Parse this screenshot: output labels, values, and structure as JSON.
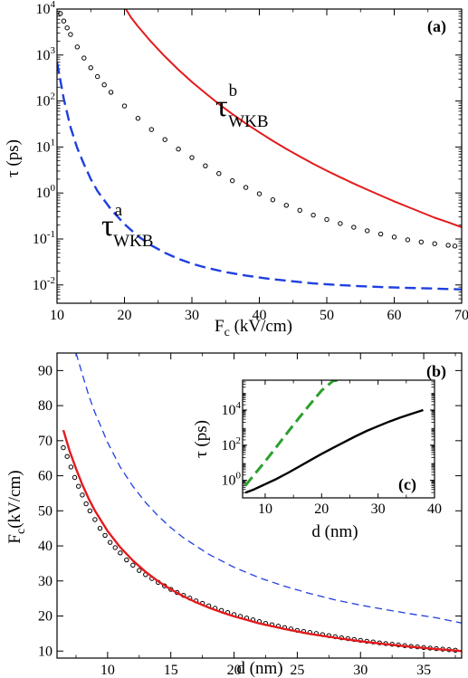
{
  "chart_data": [
    {
      "type": "scatter",
      "panel_label": "(a)",
      "xlabel": "F",
      "xlabel_sub": "c",
      "xlabel_unit": " (kV/cm)",
      "ylabel": "τ (ps)",
      "xlim": [
        10,
        70
      ],
      "ylim": [
        0.004,
        10000
      ],
      "yscale": "log",
      "x_ticks": [
        10,
        20,
        30,
        40,
        50,
        60,
        70
      ],
      "x_tick_labels": [
        "10",
        "20",
        "30",
        "40",
        "50",
        "60",
        "70"
      ],
      "y_ticks": [
        0.01,
        0.1,
        1,
        10,
        100,
        1000,
        10000
      ],
      "y_tick_bases": [
        "10",
        "10",
        "10",
        "10",
        "10",
        "10",
        "10"
      ],
      "y_tick_exps": [
        "-2",
        "-1",
        "0",
        "1",
        "2",
        "3",
        "4"
      ],
      "series": [
        {
          "style": "points",
          "color": "#000000",
          "x": [
            10.5,
            11,
            11.5,
            12,
            13,
            14,
            15,
            16,
            17,
            18,
            20,
            22,
            24,
            26,
            28,
            30,
            32,
            34,
            36,
            38,
            40,
            42,
            44,
            46,
            48,
            50,
            52,
            54,
            56,
            58,
            60,
            62,
            64,
            66,
            68,
            69
          ],
          "y": [
            8000,
            5500,
            3900,
            2800,
            1500,
            860,
            530,
            340,
            225,
            155,
            78,
            42,
            24,
            14.5,
            9,
            5.9,
            3.9,
            2.65,
            1.85,
            1.32,
            0.96,
            0.71,
            0.54,
            0.42,
            0.33,
            0.265,
            0.217,
            0.18,
            0.151,
            0.128,
            0.11,
            0.096,
            0.086,
            0.079,
            0.073,
            0.07
          ]
        },
        {
          "name": "τ",
          "name_sup": "b",
          "name_sub": "WKB",
          "style": "solid",
          "color": "#e41a1c",
          "x": [
            20.2,
            21,
            22,
            24,
            26,
            28,
            30,
            32,
            34,
            36,
            38,
            40,
            42,
            44,
            46,
            48,
            50,
            52,
            54,
            56,
            58,
            60,
            62,
            64,
            66,
            68,
            70
          ],
          "y": [
            10000,
            6500,
            4200,
            1900,
            930,
            480,
            260,
            148,
            86,
            52,
            32.5,
            20.8,
            13.6,
            9.1,
            6.2,
            4.3,
            3.05,
            2.2,
            1.6,
            1.18,
            0.88,
            0.66,
            0.5,
            0.38,
            0.29,
            0.23,
            0.18
          ]
        },
        {
          "name": "τ",
          "name_sup": "a",
          "name_sub": "WKB",
          "style": "dashed",
          "color": "#1f3fe0",
          "x": [
            10,
            11,
            12,
            13,
            14,
            15,
            16,
            18,
            20,
            22,
            24,
            26,
            28,
            30,
            32,
            35,
            38,
            40,
            42,
            45,
            48,
            50,
            55,
            60,
            65,
            70
          ],
          "y": [
            700,
            110,
            27,
            9.5,
            4.2,
            2.0,
            1.1,
            0.44,
            0.21,
            0.115,
            0.072,
            0.05,
            0.037,
            0.029,
            0.024,
            0.019,
            0.016,
            0.0145,
            0.0133,
            0.012,
            0.0108,
            0.0103,
            0.0094,
            0.0088,
            0.0084,
            0.008
          ]
        }
      ]
    },
    {
      "type": "scatter",
      "panel_label": "(b)",
      "xlabel": "d (nm)",
      "ylabel": "F",
      "ylabel_sub": "c",
      "ylabel_unit": "(kV/cm)",
      "xlim": [
        6,
        38
      ],
      "ylim": [
        8,
        95
      ],
      "x_ticks": [
        10,
        15,
        20,
        25,
        30,
        35
      ],
      "x_tick_labels": [
        "10",
        "15",
        "20",
        "25",
        "30",
        "35"
      ],
      "y_ticks": [
        10,
        20,
        30,
        40,
        50,
        60,
        70,
        80,
        90
      ],
      "y_tick_labels": [
        "10",
        "20",
        "30",
        "40",
        "50",
        "60",
        "70",
        "80",
        "90"
      ],
      "series": [
        {
          "style": "points",
          "color": "#000000",
          "x": [
            6.5,
            6.8,
            7.1,
            7.4,
            7.7,
            8.0,
            8.3,
            8.6,
            9.0,
            9.4,
            9.8,
            10.2,
            10.6,
            11.0,
            11.5,
            12.0,
            12.5,
            13.0,
            13.5,
            14.0,
            14.5,
            15.0,
            15.5,
            16.0,
            16.5,
            17.0,
            17.5,
            18.0,
            18.5,
            19.0,
            19.5,
            20.0,
            20.5,
            21.0,
            21.5,
            22.0,
            22.5,
            23.0,
            23.5,
            24.0,
            24.5,
            25.0,
            25.5,
            26.0,
            26.5,
            27.0,
            27.5,
            28.0,
            28.5,
            29.0,
            29.5,
            30.0,
            30.5,
            31.0,
            31.5,
            32.0,
            32.5,
            33.0,
            33.5,
            34.0,
            34.5,
            35.0,
            35.5,
            36.0,
            36.5,
            37.0,
            37.5
          ],
          "y": [
            68,
            65.5,
            62.5,
            59.5,
            57,
            54.5,
            52,
            50,
            47.5,
            45,
            43,
            41,
            39.5,
            38,
            36,
            34.5,
            33,
            31.8,
            30.7,
            29.6,
            28.6,
            27.6,
            26.7,
            25.9,
            25.1,
            24.3,
            23.6,
            22.9,
            22.2,
            21.6,
            21.0,
            20.4,
            19.9,
            19.4,
            18.9,
            18.4,
            17.9,
            17.5,
            17.1,
            16.7,
            16.3,
            15.9,
            15.6,
            15.3,
            15.0,
            14.7,
            14.4,
            14.1,
            13.8,
            13.55,
            13.3,
            13.05,
            12.8,
            12.6,
            12.35,
            12.15,
            11.95,
            11.75,
            11.55,
            11.35,
            11.2,
            11.0,
            10.85,
            10.7,
            10.55,
            10.4,
            10.25
          ]
        },
        {
          "style": "solid",
          "color": "#e41a1c",
          "x": [
            6.5,
            7,
            7.5,
            8,
            8.5,
            9,
            10,
            11,
            12,
            13,
            14,
            15,
            16,
            17,
            18,
            19,
            20,
            22,
            24,
            26,
            28,
            30,
            32,
            34,
            36,
            38
          ],
          "y": [
            73,
            67,
            62,
            57.5,
            53.5,
            50,
            44.2,
            39.6,
            35.8,
            32.6,
            29.9,
            27.6,
            25.6,
            23.9,
            22.4,
            21.1,
            19.9,
            17.9,
            16.3,
            14.9,
            13.8,
            12.8,
            11.95,
            11.2,
            10.55,
            10.0
          ]
        },
        {
          "style": "dashed",
          "color": "#1f3fe0",
          "x": [
            7.5,
            8,
            8.5,
            9,
            10,
            11,
            12,
            13,
            14,
            15,
            16,
            18,
            20,
            22,
            24,
            26,
            28,
            30,
            32,
            34,
            36,
            38
          ],
          "y": [
            95,
            89,
            83,
            78,
            69.5,
            62.5,
            57,
            52.4,
            48.5,
            45.2,
            42.3,
            37.6,
            33.9,
            30.9,
            28.5,
            26.4,
            24.6,
            23.1,
            21.8,
            20.6,
            19.5,
            18.0
          ]
        }
      ]
    },
    {
      "type": "line",
      "panel_label": "(c)",
      "xlabel": "d (nm)",
      "ylabel": "τ (ps)",
      "xlim": [
        6,
        40
      ],
      "ylim": [
        0.1,
        500000
      ],
      "yscale": "log",
      "x_ticks": [
        10,
        20,
        30,
        40
      ],
      "x_tick_labels": [
        "10",
        "20",
        "30",
        "40"
      ],
      "y_ticks": [
        1,
        100,
        10000
      ],
      "y_tick_bases": [
        "10",
        "10",
        "10"
      ],
      "y_tick_exps": [
        "0",
        "2",
        "4"
      ],
      "series": [
        {
          "style": "solid",
          "color": "#000000",
          "x": [
            6.5,
            8,
            10,
            12,
            14,
            16,
            18,
            20,
            22,
            24,
            26,
            28,
            30,
            32,
            34,
            36,
            38
          ],
          "y": [
            0.2,
            0.3,
            0.6,
            1.2,
            2.6,
            6,
            14,
            32,
            70,
            150,
            320,
            650,
            1200,
            2200,
            3800,
            6200,
            10000
          ]
        },
        {
          "style": "dashed",
          "color": "#2ca02c",
          "x": [
            6.5,
            8,
            10,
            12,
            14,
            16,
            18,
            20,
            22,
            22.8
          ],
          "y": [
            0.5,
            2,
            12,
            80,
            550,
            3600,
            22000,
            130000,
            450000,
            500000
          ]
        }
      ]
    }
  ]
}
